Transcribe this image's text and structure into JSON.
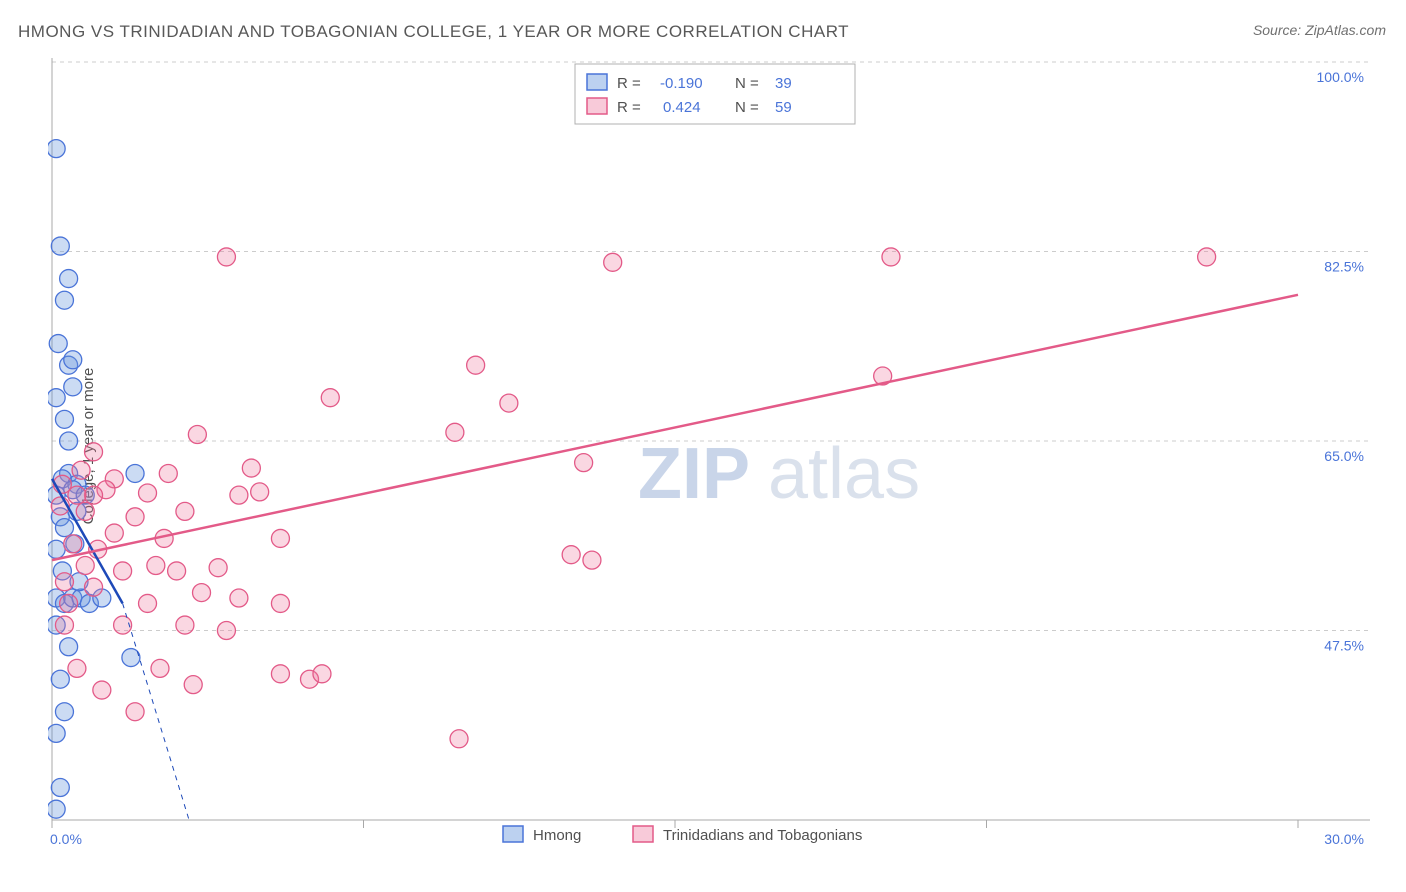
{
  "title": "HMONG VS TRINIDADIAN AND TOBAGONIAN COLLEGE, 1 YEAR OR MORE CORRELATION CHART",
  "source": "Source: ZipAtlas.com",
  "ylabel": "College, 1 year or more",
  "watermark": {
    "part1": "ZIP",
    "part2": "atlas"
  },
  "chart": {
    "type": "scatter",
    "background_color": "#ffffff",
    "grid_color": "#cccccc",
    "axis_color": "#a8a8a8",
    "text_color": "#505050",
    "value_color": "#4a74d8",
    "xlim": [
      0,
      30
    ],
    "ylim": [
      30,
      100
    ],
    "xtick_positions": [
      0,
      15,
      30
    ],
    "xtick_labels": [
      "0.0%",
      "",
      "30.0%"
    ],
    "ytick_positions": [
      47.5,
      65.0,
      82.5,
      100.0
    ],
    "ytick_labels": [
      "47.5%",
      "65.0%",
      "82.5%",
      "100.0%"
    ],
    "minor_xticks": [
      7.5,
      22.5
    ],
    "point_radius": 9,
    "series": [
      {
        "name": "Hmong",
        "color_fill": "rgba(106,152,222,0.35)",
        "color_stroke": "#4a74d8",
        "R": "-0.190",
        "N": "39",
        "trend": {
          "x0": 0,
          "y0": 61.5,
          "x1": 1.7,
          "y1": 50.0,
          "dash_x1": 3.3,
          "dash_y1": 30.0
        },
        "points": [
          [
            0.1,
            92.0
          ],
          [
            0.2,
            83.0
          ],
          [
            0.4,
            80.0
          ],
          [
            0.3,
            78.0
          ],
          [
            0.15,
            74.0
          ],
          [
            0.4,
            72.0
          ],
          [
            0.5,
            72.5
          ],
          [
            0.5,
            70.0
          ],
          [
            0.1,
            69.0
          ],
          [
            0.3,
            67.0
          ],
          [
            0.4,
            62.0
          ],
          [
            0.25,
            61.5
          ],
          [
            0.6,
            61.0
          ],
          [
            0.5,
            60.5
          ],
          [
            0.1,
            60.0
          ],
          [
            0.2,
            58.0
          ],
          [
            0.6,
            58.5
          ],
          [
            0.3,
            57.0
          ],
          [
            0.1,
            55.0
          ],
          [
            0.55,
            55.5
          ],
          [
            0.25,
            53.0
          ],
          [
            0.1,
            50.5
          ],
          [
            0.3,
            50.0
          ],
          [
            0.5,
            50.5
          ],
          [
            0.7,
            50.5
          ],
          [
            0.9,
            50.0
          ],
          [
            0.1,
            48.0
          ],
          [
            0.4,
            46.0
          ],
          [
            0.2,
            43.0
          ],
          [
            0.3,
            40.0
          ],
          [
            0.1,
            38.0
          ],
          [
            0.2,
            33.0
          ],
          [
            0.1,
            31.0
          ],
          [
            2.0,
            62.0
          ],
          [
            1.9,
            45.0
          ],
          [
            1.2,
            50.5
          ],
          [
            0.8,
            60.0
          ],
          [
            0.65,
            52.0
          ],
          [
            0.4,
            65.0
          ]
        ]
      },
      {
        "name": "Trinidadians and Tobagonians",
        "color_fill": "rgba(238,122,160,0.3)",
        "color_stroke": "#e35a88",
        "R": "0.424",
        "N": "59",
        "trend": {
          "x0": 0,
          "y0": 54.0,
          "x1": 30,
          "y1": 78.5
        },
        "points": [
          [
            4.2,
            82.0
          ],
          [
            13.5,
            81.5
          ],
          [
            20.2,
            82.0
          ],
          [
            27.8,
            82.0
          ],
          [
            6.7,
            69.0
          ],
          [
            10.2,
            72.0
          ],
          [
            11.0,
            68.5
          ],
          [
            20.0,
            71.0
          ],
          [
            12.8,
            63.0
          ],
          [
            9.7,
            65.8
          ],
          [
            3.5,
            65.6
          ],
          [
            5.0,
            60.3
          ],
          [
            4.5,
            60.0
          ],
          [
            2.3,
            60.2
          ],
          [
            3.2,
            58.5
          ],
          [
            1.5,
            61.5
          ],
          [
            1.3,
            60.5
          ],
          [
            0.7,
            62.3
          ],
          [
            1.0,
            60.0
          ],
          [
            2.0,
            58.0
          ],
          [
            0.8,
            58.5
          ],
          [
            1.5,
            56.5
          ],
          [
            2.7,
            56.0
          ],
          [
            1.1,
            55.0
          ],
          [
            0.5,
            55.5
          ],
          [
            1.7,
            53.0
          ],
          [
            2.5,
            53.5
          ],
          [
            3.0,
            53.0
          ],
          [
            4.0,
            53.3
          ],
          [
            0.3,
            52.0
          ],
          [
            1.0,
            51.5
          ],
          [
            2.3,
            50.0
          ],
          [
            3.6,
            51.0
          ],
          [
            4.5,
            50.5
          ],
          [
            5.5,
            50.0
          ],
          [
            3.2,
            48.0
          ],
          [
            4.2,
            47.5
          ],
          [
            12.5,
            54.5
          ],
          [
            13.0,
            54.0
          ],
          [
            2.6,
            44.0
          ],
          [
            3.4,
            42.5
          ],
          [
            5.5,
            43.5
          ],
          [
            6.2,
            43.0
          ],
          [
            6.5,
            43.5
          ],
          [
            2.0,
            40.0
          ],
          [
            9.8,
            37.5
          ],
          [
            0.8,
            53.5
          ],
          [
            1.7,
            48.0
          ],
          [
            0.4,
            50.0
          ],
          [
            0.3,
            48.0
          ],
          [
            0.6,
            44.0
          ],
          [
            1.2,
            42.0
          ],
          [
            0.2,
            59.0
          ],
          [
            0.25,
            61.0
          ],
          [
            0.6,
            60.0
          ],
          [
            5.5,
            56.0
          ],
          [
            2.8,
            62.0
          ],
          [
            4.8,
            62.5
          ],
          [
            1.0,
            64.0
          ]
        ]
      }
    ],
    "legend_bottom": {
      "items": [
        {
          "swatch": "blue",
          "label": "Hmong"
        },
        {
          "swatch": "pink",
          "label": "Trinidadians and Tobagonians"
        }
      ]
    }
  }
}
